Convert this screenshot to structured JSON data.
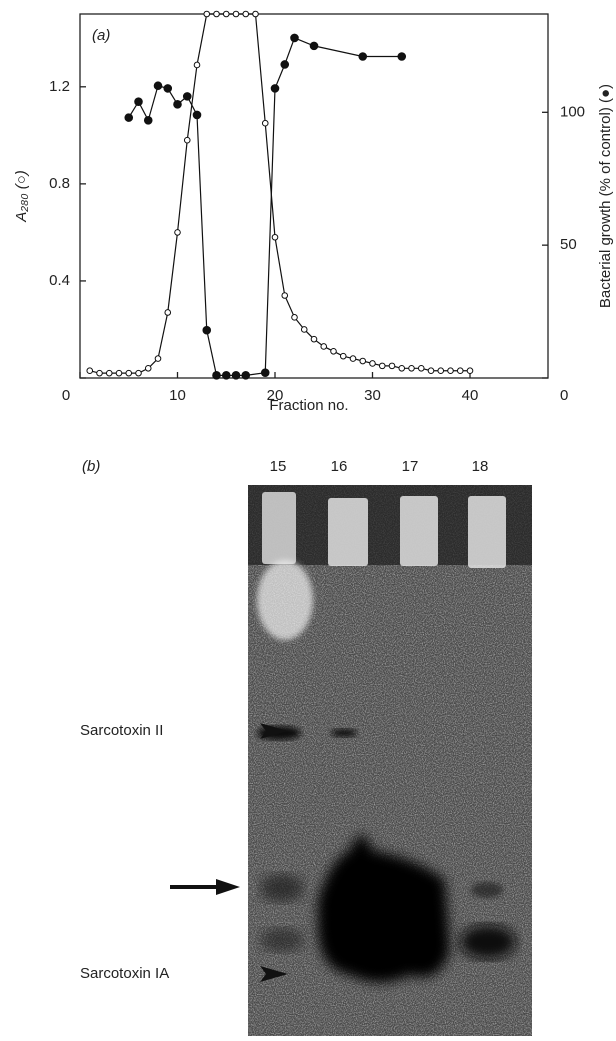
{
  "chart_data": {
    "type": "line",
    "panel_label": "(a)",
    "xlabel": "Fraction no.",
    "ylabel": "A₂₈₀ (○)",
    "y2label": "Bacterial growth (% of control) (●)",
    "xlim": [
      0,
      48
    ],
    "xticks": [
      0,
      10,
      20,
      30,
      40
    ],
    "ylim": [
      0,
      1.5
    ],
    "yticks": [
      0,
      0.4,
      0.8,
      1.2
    ],
    "y2lim": [
      0,
      137
    ],
    "y2ticks": [
      0,
      50,
      100
    ],
    "series": [
      {
        "marker": "open",
        "color": "#111",
        "x": [
          1,
          2,
          3,
          4,
          5,
          6,
          7,
          8,
          9,
          10,
          11,
          12,
          13,
          14,
          15,
          16,
          17,
          18,
          19,
          20,
          21,
          22,
          23,
          24,
          25,
          26,
          27,
          28,
          29,
          30,
          31,
          32,
          33,
          34,
          35,
          36,
          37,
          38,
          39,
          40
        ],
        "values": [
          0.03,
          0.02,
          0.02,
          0.02,
          0.02,
          0.02,
          0.04,
          0.08,
          0.27,
          0.6,
          0.98,
          1.29,
          1.5,
          1.5,
          1.5,
          1.5,
          1.5,
          1.5,
          1.05,
          0.58,
          0.34,
          0.25,
          0.2,
          0.16,
          0.13,
          0.11,
          0.09,
          0.08,
          0.07,
          0.06,
          0.05,
          0.05,
          0.04,
          0.04,
          0.04,
          0.03,
          0.03,
          0.03,
          0.03,
          0.03
        ]
      },
      {
        "marker": "filled",
        "color": "#111",
        "axis": "y2",
        "x": [
          5,
          6,
          7,
          8,
          9,
          10,
          11,
          12,
          13,
          14,
          15,
          16,
          17,
          19,
          20,
          21,
          22,
          24,
          29,
          33
        ],
        "values": [
          98,
          104,
          97,
          110,
          109,
          103,
          106,
          99,
          18,
          1,
          1,
          1,
          1,
          2,
          109,
          118,
          128,
          125,
          121,
          121
        ]
      }
    ]
  },
  "panel_b": {
    "label": "(b)",
    "lanes": [
      "15",
      "16",
      "17",
      "18"
    ],
    "bands": [
      "Sarcotoxin II",
      "Sarcotoxin IA"
    ]
  }
}
